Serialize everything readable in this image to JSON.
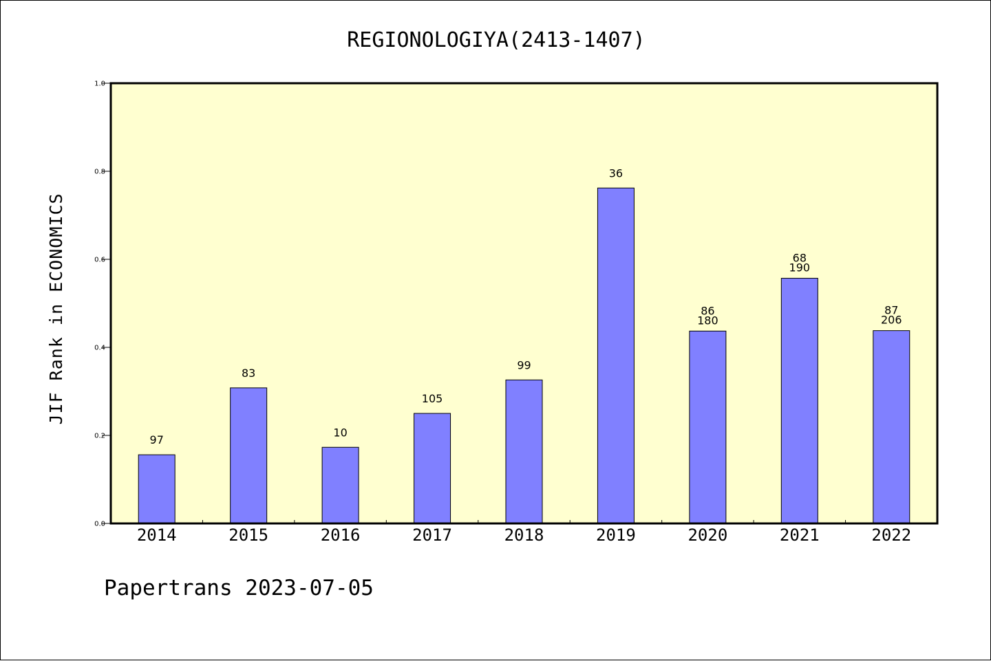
{
  "chart_data": {
    "type": "bar",
    "title": "REGIONOLOGIYA(2413-1407)",
    "xlabel": "",
    "ylabel": "JIF Rank in ECONOMICS",
    "ylim": [
      0,
      1.0
    ],
    "yticks": [
      "0.0",
      "0.2",
      "0.4",
      "0.6",
      "0.8",
      "1.0"
    ],
    "categories": [
      "2014",
      "2015",
      "2016",
      "2017",
      "2018",
      "2019",
      "2020",
      "2021",
      "2022"
    ],
    "values": [
      0.156,
      0.308,
      0.173,
      0.25,
      0.326,
      0.762,
      0.437,
      0.557,
      0.438
    ],
    "bar_labels": [
      [
        "97"
      ],
      [
        "83"
      ],
      [
        "10"
      ],
      [
        "105"
      ],
      [
        "99"
      ],
      [
        "36"
      ],
      [
        "86",
        "180"
      ],
      [
        "68",
        "190"
      ],
      [
        "87",
        "206"
      ]
    ],
    "bar_color": "#8080ff",
    "plot_background": "#ffffd0",
    "grid": false,
    "legend": "none"
  },
  "footer": "Papertrans 2023-07-05"
}
